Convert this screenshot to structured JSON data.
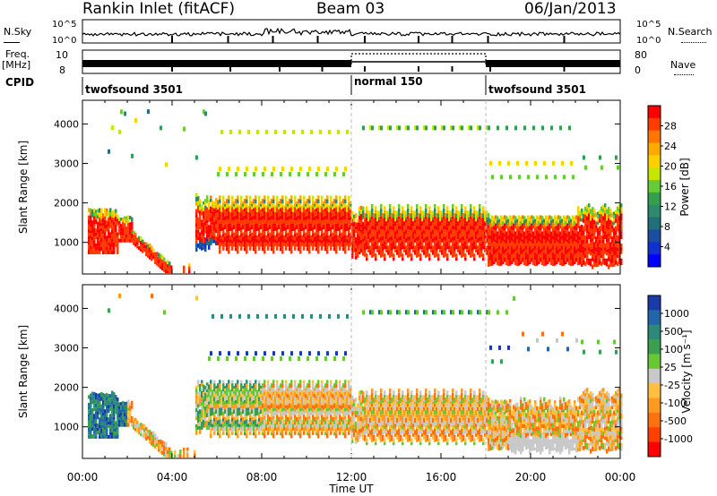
{
  "header": {
    "station": "Rankin Inlet (fitACF)",
    "beam": "Beam 03",
    "date": "06/Jan/2013"
  },
  "strip_labels": {
    "nsky": "N.Sky",
    "nsky_ticks": [
      "10^5",
      "10^0"
    ],
    "nsearch": "N.Search",
    "nsearch_ticks": [
      "10^5",
      "10^0"
    ],
    "freq_label": "Freq.",
    "freq_unit": "[MHz]",
    "freq_ticks": [
      "10",
      "8"
    ],
    "nave": "Nave",
    "nave_ticks": [
      "80",
      "0"
    ],
    "cpid": "CPID",
    "cpid_segments": [
      "twofsound 3501",
      "normal 150",
      "twofsound 3501"
    ]
  },
  "chart_data": [
    {
      "type": "heatmap",
      "title": "Power",
      "ylabel": "Slant Range [km]",
      "xlabel": "",
      "x_ticks": [
        "00:00",
        "04:00",
        "08:00",
        "12:00",
        "16:00",
        "20:00",
        "00:00"
      ],
      "y_ticks": [
        1000,
        2000,
        3000,
        4000
      ],
      "ylim": [
        200,
        4600
      ],
      "xlim_hours": [
        0,
        24
      ],
      "colorbar": {
        "label": "Power [dB]",
        "ticks": [
          "28",
          "24",
          "20",
          "16",
          "12",
          "8",
          "4"
        ],
        "colors": [
          "#ff0000",
          "#ff3c00",
          "#ff7700",
          "#ffaa00",
          "#ffd000",
          "#c6e600",
          "#66cc33",
          "#33a050",
          "#2d8a6a",
          "#226f7c",
          "#1a4fa0",
          "#1030d0",
          "#0000ff"
        ]
      }
    },
    {
      "type": "heatmap",
      "title": "Velocity",
      "ylabel": "Slant Range [km]",
      "xlabel": "Time UT",
      "x_ticks": [
        "00:00",
        "04:00",
        "08:00",
        "12:00",
        "16:00",
        "20:00",
        "00:00"
      ],
      "y_ticks": [
        1000,
        2000,
        3000,
        4000
      ],
      "ylim": [
        200,
        4600
      ],
      "xlim_hours": [
        0,
        24
      ],
      "colorbar": {
        "label": "Velocity [m s⁻¹]",
        "ticks": [
          "1000",
          "500",
          "100",
          "25",
          "-25",
          "-100",
          "-500",
          "-1000"
        ],
        "colors": [
          "#1a3aa8",
          "#2266aa",
          "#2e8a78",
          "#3aa050",
          "#66c833",
          "#c8c8c8",
          "#ffc040",
          "#ff9a20",
          "#ff7010",
          "#ff4000",
          "#ff0000"
        ]
      }
    }
  ]
}
